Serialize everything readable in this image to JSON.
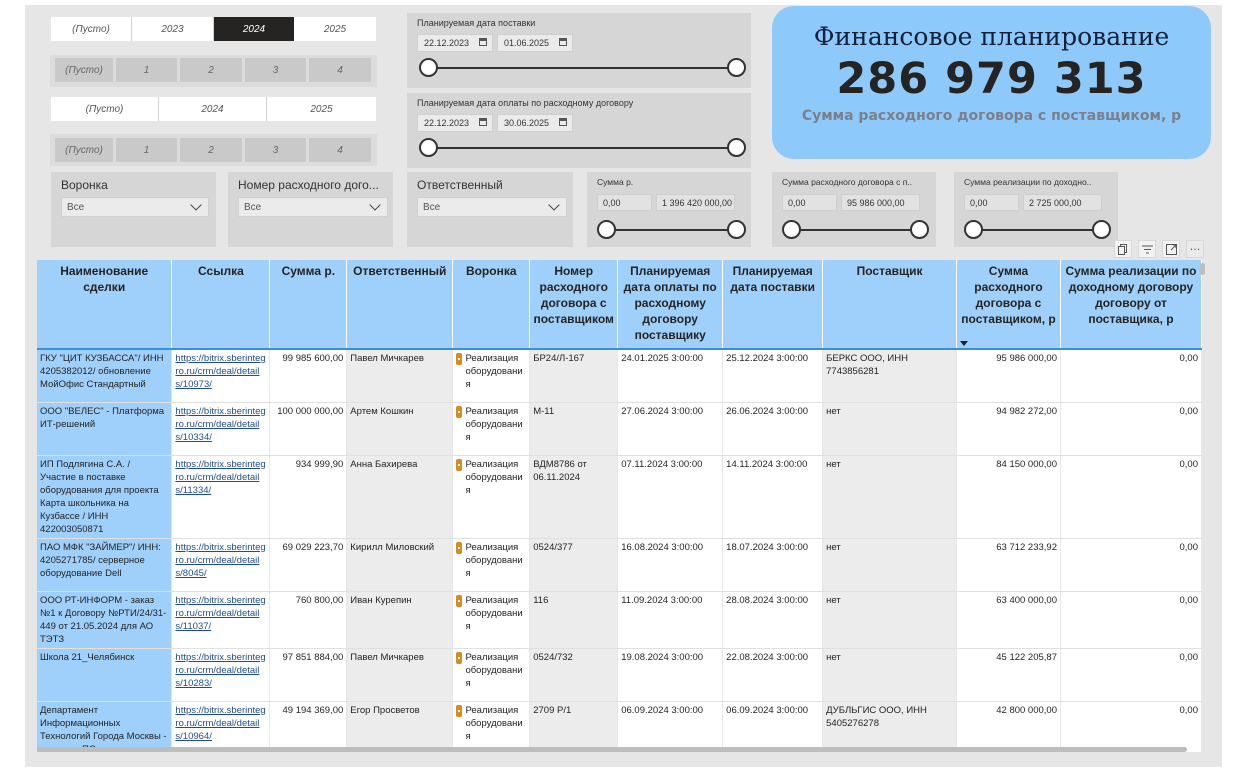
{
  "year_slicer_1": {
    "options": [
      "(Пусто)",
      "2023",
      "2024",
      "2025"
    ],
    "selected": "2024"
  },
  "month_slicer_1": {
    "options": [
      "(Пусто)",
      "1",
      "2",
      "3",
      "4"
    ]
  },
  "year_slicer_2": {
    "options": [
      "(Пусто)",
      "2024",
      "2025"
    ]
  },
  "month_slicer_2": {
    "options": [
      "(Пусто)",
      "1",
      "2",
      "3",
      "4"
    ]
  },
  "delivery_date": {
    "title": "Планируемая дата поставки",
    "from": "22.12.2023",
    "to": "01.06.2025"
  },
  "payment_date": {
    "title": "Планируемая дата оплаты по расходному договору",
    "from": "22.12.2023",
    "to": "30.06.2025"
  },
  "header_card": {
    "title": "Финансовое планирование",
    "value": "286 979 313",
    "subtitle": "Сумма расходного договора с поставщиком, р"
  },
  "dropdowns": [
    {
      "title": "Воронка",
      "value": "Все"
    },
    {
      "title": "Номер расходного дого...",
      "value": "Все"
    },
    {
      "title": "Ответственный",
      "value": "Все"
    }
  ],
  "range_sum": {
    "title": "Сумма р.",
    "min": "0,00",
    "max": "1 396 420 000,00"
  },
  "range_contract": {
    "title": "Сумма расходного договора с п..",
    "min": "0,00",
    "max": "95 986 000,00"
  },
  "range_sales": {
    "title": "Сумма реализации по доходно..",
    "min": "0,00",
    "max": "2 725 000,00"
  },
  "visual_header_icons": [
    "copy-icon",
    "filter-icon",
    "focus-mode-icon",
    "more-options-icon"
  ],
  "table": {
    "columns": [
      "Наименование сделки",
      "Ссылка",
      "Сумма р.",
      "Ответственный",
      "Воронка",
      "Номер расходного договора с поставщиком",
      "Планируемая дата оплаты по расходному договору поставщику",
      "Планируемая дата поставки",
      "Поставщик",
      "Сумма расходного договора с поставщиком, р",
      "Сумма реализации по доходному договору договору от поставщика, р"
    ],
    "rows": [
      {
        "name": "ГКУ \"ЦИТ КУЗБАССА\"/ ИНН 4205382012/ обновление МойОфис Стандартный",
        "link": "https://bitrix.sberintegro.ru/crm/deal/details/10973/",
        "sum": "99 985 600,00",
        "responsible": "Павел Мичкарев",
        "funnel": "Реализация оборудования",
        "contract_no": "БР24/Л-167",
        "pay_date": "24.01.2025 3:00:00",
        "delivery_date": "25.12.2024 3:00:00",
        "supplier": "БЕРКС ООО, ИНН 7743856281",
        "contract_sum": "95 986 000,00",
        "sales_sum": "0,00"
      },
      {
        "name": "ООО \"ВЕЛЕС\" - Платформа ИТ-решений",
        "link": "https://bitrix.sberintegro.ru/crm/deal/details/10334/",
        "sum": "100 000 000,00",
        "responsible": "Артем Кошкин",
        "funnel": "Реализация оборудования",
        "contract_no": "М-11",
        "pay_date": "27.06.2024 3:00:00",
        "delivery_date": "26.06.2024 3:00:00",
        "supplier": "нет",
        "contract_sum": "94 982 272,00",
        "sales_sum": "0,00"
      },
      {
        "name": "ИП Подлягина С.А. / Участие в поставке оборудования для проекта Карта школьника на Кузбассе / ИНН 422003050871",
        "link": "https://bitrix.sberintegro.ru/crm/deal/details/11334/",
        "sum": "934 999,90",
        "responsible": "Анна Бахирева",
        "funnel": "Реализация оборудования",
        "contract_no": "ВДМ8786 от 06.11.2024",
        "pay_date": "07.11.2024 3:00:00",
        "delivery_date": "14.11.2024 3:00:00",
        "supplier": "нет",
        "contract_sum": "84 150 000,00",
        "sales_sum": "0,00"
      },
      {
        "name": "ПАО МФК \"ЗАЙМЕР\"/ ИНН: 4205271785/ серверное оборудование Dell",
        "link": "https://bitrix.sberintegro.ru/crm/deal/details/8045/",
        "sum": "69 029 223,70",
        "responsible": "Кирилл Миловский",
        "funnel": "Реализация оборудования",
        "contract_no": "0524/377",
        "pay_date": "16.08.2024 3:00:00",
        "delivery_date": "18.07.2024 3:00:00",
        "supplier": "нет",
        "contract_sum": "63 712 233,92",
        "sales_sum": "0,00"
      },
      {
        "name": "ООО РТ-ИНФОРМ - заказ №1 к Договору №РТИ/24/31-449 от 21.05.2024 для АО ТЭТЗ",
        "link": "https://bitrix.sberintegro.ru/crm/deal/details/11037/",
        "sum": "760 800,00",
        "responsible": "Иван Курепин",
        "funnel": "Реализация оборудования",
        "contract_no": "116",
        "pay_date": "11.09.2024 3:00:00",
        "delivery_date": "28.08.2024 3:00:00",
        "supplier": "нет",
        "contract_sum": "63 400 000,00",
        "sales_sum": "0,00"
      },
      {
        "name": "Школа 21_Челябинск",
        "link": "https://bitrix.sberintegro.ru/crm/deal/details/10283/",
        "sum": "97 851 884,00",
        "responsible": "Павел Мичкарев",
        "funnel": "Реализация оборудования",
        "contract_no": "0524/732",
        "pay_date": "19.08.2024 3:00:00",
        "delivery_date": "22.08.2024 3:00:00",
        "supplier": "нет",
        "contract_sum": "45 122 205,87",
        "sales_sum": "0,00"
      },
      {
        "name": "Департамент Информационных Технологий Города Москвы - поставка ПО в",
        "link": "https://bitrix.sberintegro.ru/crm/deal/details/10964/",
        "sum": "49 194 369,00",
        "responsible": "Егор Просветов",
        "funnel": "Реализация оборудования",
        "contract_no": "2709 Р/1",
        "pay_date": "06.09.2024 3:00:00",
        "delivery_date": "06.09.2024 3:00:00",
        "supplier": "ДУБЛЬГИС ООО, ИНН 5405276278",
        "contract_sum": "42 800 000,00",
        "sales_sum": "0,00"
      }
    ]
  }
}
